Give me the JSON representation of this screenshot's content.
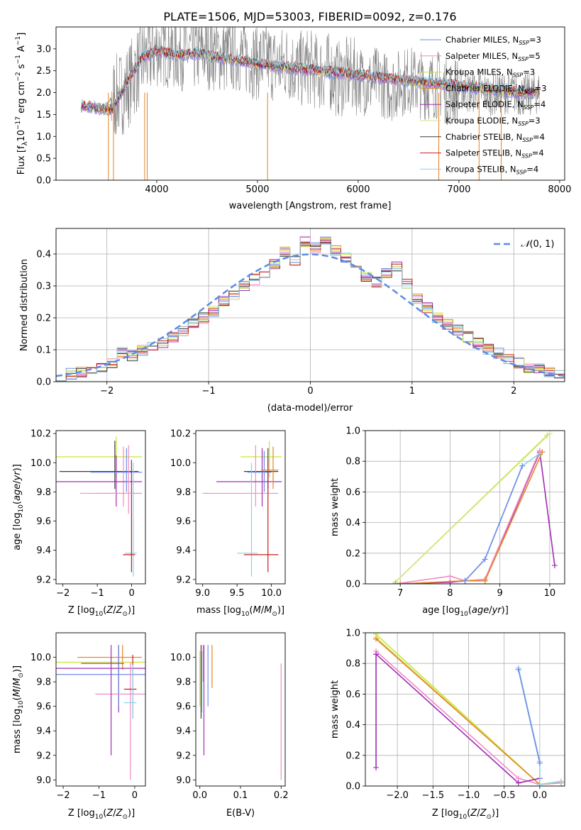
{
  "figure": {
    "title": "PLATE=1506, MJD=53003, FIBERID=0092, z=0.176"
  },
  "colors": {
    "observed": "#808080",
    "models": [
      "#6f8ce6",
      "#f08cc8",
      "#c8e632",
      "#e6821e",
      "#a02cb4",
      "#d2e682",
      "#3c3c3c",
      "#c81e1e",
      "#8cd2e6"
    ],
    "normal_curve": "#5a8ce6",
    "grid": "#b0b0b0"
  },
  "chart_data": [
    {
      "id": "spectrum",
      "type": "line",
      "title": "PLATE=1506, MJD=53003, FIBERID=0092, z=0.176",
      "xlabel": "wavelength [Angstrom, rest frame]",
      "ylabel": "Flux [f_λ 10^-17 erg cm^-2 s^-1 A^-1]",
      "xlim": [
        3000,
        8050
      ],
      "ylim": [
        0,
        3.5
      ],
      "xticks": [
        4000,
        5000,
        6000,
        7000,
        8000
      ],
      "yticks": [
        0.0,
        0.5,
        1.0,
        1.5,
        2.0,
        2.5,
        3.0
      ],
      "grid": false,
      "legend_position": "top-right",
      "observed": {
        "name": "observed spectrum",
        "x": [
          3250,
          3300,
          3350,
          3400,
          3450,
          3500,
          3550,
          3600,
          3650,
          3700,
          3750,
          3800,
          3850,
          3900,
          3950,
          4000,
          4100,
          4200,
          4300,
          4400,
          4500,
          4600,
          4700,
          4800,
          4900,
          5000,
          5100,
          5200,
          5300,
          5400,
          5500,
          5600,
          5700,
          5800,
          5900,
          6000,
          6100,
          6200,
          6300,
          6400,
          6500,
          6600,
          6700,
          6800,
          6900,
          7000,
          7100,
          7200,
          7300,
          7400,
          7500,
          7600,
          7700,
          7800
        ],
        "y": [
          1.65,
          1.7,
          1.6,
          1.7,
          1.55,
          1.7,
          1.85,
          1.9,
          2.0,
          2.1,
          2.3,
          2.5,
          2.7,
          2.8,
          2.9,
          3.0,
          3.0,
          2.9,
          2.95,
          2.9,
          2.95,
          2.9,
          2.85,
          2.9,
          2.8,
          2.7,
          2.75,
          2.6,
          2.7,
          2.5,
          2.6,
          2.45,
          2.5,
          2.3,
          2.4,
          2.35,
          2.2,
          2.3,
          2.1,
          2.2,
          2.3,
          2.2,
          2.15,
          2.2,
          2.0,
          2.1,
          2.0,
          2.05,
          1.95,
          2.0,
          2.0,
          1.95,
          1.95,
          2.0
        ]
      },
      "models": {
        "x": [
          3250,
          3400,
          3550,
          3700,
          3850,
          4000,
          4200,
          4400,
          4600,
          4800,
          5000,
          5200,
          5400,
          5600,
          5800,
          6000,
          6200,
          6400,
          6600,
          6800,
          7000,
          7200,
          7400,
          7600,
          7800
        ],
        "y": [
          1.7,
          1.65,
          1.6,
          2.2,
          2.8,
          2.95,
          2.85,
          2.9,
          2.8,
          2.75,
          2.65,
          2.6,
          2.55,
          2.5,
          2.45,
          2.4,
          2.35,
          2.3,
          2.25,
          2.2,
          2.15,
          2.1,
          2.05,
          2.0,
          2.0
        ]
      },
      "series_names": [
        "Chabrier MILES, N_SSP=3",
        "Salpeter MILES, N_SSP=5",
        "Kroupa MILES, N_SSP=3",
        "Chabrier ELODIE, N_SSP=3",
        "Salpeter ELODIE, N_SSP=4",
        "Kroupa ELODIE, N_SSP=3",
        "Chabrier STELIB, N_SSP=4",
        "Salpeter STELIB, N_SSP=4",
        "Kroupa STELIB, N_SSP=4"
      ],
      "legend": [
        {
          "model": "Chabrier MILES, N",
          "sub": "SSP",
          "tail": "=3"
        },
        {
          "model": "Salpeter MILES, N",
          "sub": "SSP",
          "tail": "=5"
        },
        {
          "model": "Kroupa MILES, N",
          "sub": "SSP",
          "tail": "=3"
        },
        {
          "model": "Chabrier ELODIE, N",
          "sub": "SSP",
          "tail": "=3"
        },
        {
          "model": "Salpeter ELODIE, N",
          "sub": "SSP",
          "tail": "=4"
        },
        {
          "model": "Kroupa ELODIE, N",
          "sub": "SSP",
          "tail": "=3"
        },
        {
          "model": "Chabrier STELIB, N",
          "sub": "SSP",
          "tail": "=4"
        },
        {
          "model": "Salpeter STELIB, N",
          "sub": "SSP",
          "tail": "=4"
        },
        {
          "model": "Kroupa STELIB, N",
          "sub": "SSP",
          "tail": "=4"
        }
      ]
    },
    {
      "id": "residuals",
      "type": "line",
      "xlabel": "(data-model)/error",
      "ylabel": "Normed distribution",
      "xlim": [
        -2.5,
        2.5
      ],
      "ylim": [
        0,
        0.48
      ],
      "xticks": [
        -2,
        -1,
        0,
        1,
        2
      ],
      "yticks": [
        0.0,
        0.1,
        0.2,
        0.3,
        0.4
      ],
      "grid": true,
      "legend_position": "top-right",
      "normal_label": "N(0,1)",
      "bin_edges": [
        -2.5,
        -2.4,
        -2.3,
        -2.2,
        -2.1,
        -2.0,
        -1.9,
        -1.8,
        -1.7,
        -1.6,
        -1.5,
        -1.4,
        -1.3,
        -1.2,
        -1.1,
        -1.0,
        -0.9,
        -0.8,
        -0.7,
        -0.6,
        -0.5,
        -0.4,
        -0.3,
        -0.2,
        -0.1,
        0.0,
        0.1,
        0.2,
        0.3,
        0.4,
        0.5,
        0.6,
        0.7,
        0.8,
        0.9,
        1.0,
        1.1,
        1.2,
        1.3,
        1.4,
        1.5,
        1.6,
        1.7,
        1.8,
        1.9,
        2.0,
        2.1,
        2.2,
        2.3,
        2.4,
        2.5
      ],
      "hist_values": [
        0.02,
        0.025,
        0.03,
        0.035,
        0.04,
        0.06,
        0.09,
        0.08,
        0.1,
        0.11,
        0.12,
        0.14,
        0.16,
        0.18,
        0.2,
        0.22,
        0.25,
        0.27,
        0.3,
        0.32,
        0.34,
        0.37,
        0.41,
        0.38,
        0.44,
        0.42,
        0.44,
        0.41,
        0.39,
        0.37,
        0.33,
        0.31,
        0.34,
        0.36,
        0.31,
        0.26,
        0.23,
        0.2,
        0.18,
        0.16,
        0.14,
        0.12,
        0.1,
        0.09,
        0.07,
        0.06,
        0.045,
        0.04,
        0.03,
        0.025
      ]
    },
    {
      "id": "age_vs_Z",
      "type": "scatter",
      "xlabel": "Z [log10(Z/Z⊙)]",
      "ylabel": "age [log10(age/yr)]",
      "xlim": [
        -2.2,
        0.4
      ],
      "ylim": [
        9.17,
        10.22
      ],
      "xticks": [
        -2,
        -1,
        0
      ],
      "yticks": [
        9.2,
        9.4,
        9.6,
        9.8,
        10.0,
        10.2
      ],
      "grid": false,
      "points": [
        {
          "x": -2.2,
          "x2": 0.3,
          "y": 10.04,
          "y1": 9.9,
          "y2": 10.18,
          "c": 2
        },
        {
          "x": -2.1,
          "x2": 0.2,
          "y": 9.94,
          "y1": 9.82,
          "y2": 10.15,
          "c": 6
        },
        {
          "x": -1.5,
          "x2": 0.3,
          "y": 9.79,
          "y1": 9.7,
          "y2": 10.11,
          "c": 1
        },
        {
          "x": -2.2,
          "x2": 0.3,
          "y": 9.87,
          "y1": 9.7,
          "y2": 10.05,
          "c": 4
        },
        {
          "x": -1.2,
          "x2": 0.3,
          "y": 9.935,
          "y1": 9.8,
          "y2": 10.1,
          "c": 0
        },
        {
          "x": -0.2,
          "x2": 0.15,
          "y": 9.38,
          "y1": 9.22,
          "y2": 10.0,
          "c": 8
        },
        {
          "x": -0.25,
          "x2": 0.1,
          "y": 9.37,
          "y1": 9.25,
          "y2": 10.02,
          "c": 7
        },
        {
          "x": -1.0,
          "x2": 0.3,
          "y": 9.79,
          "y1": 9.65,
          "y2": 10.12,
          "c": 1
        }
      ]
    },
    {
      "id": "age_vs_mass",
      "type": "scatter",
      "xlabel": "mass [log10(M/M⊙)]",
      "ylabel": "",
      "xlim": [
        8.9,
        10.2
      ],
      "ylim": [
        9.17,
        10.22
      ],
      "xticks": [
        9.0,
        9.5,
        10.0
      ],
      "yticks": [
        9.2,
        9.4,
        9.6,
        9.8,
        10.0,
        10.2
      ],
      "grid": false,
      "points": [
        {
          "x": 9.55,
          "x2": 10.15,
          "y": 10.04,
          "y1": 9.9,
          "y2": 10.15,
          "c": 2
        },
        {
          "x": 9.6,
          "x2": 10.1,
          "y": 9.94,
          "y1": 9.82,
          "y2": 10.1,
          "c": 6
        },
        {
          "x": 9.0,
          "x2": 10.1,
          "y": 9.79,
          "y1": 9.7,
          "y2": 10.12,
          "c": 1
        },
        {
          "x": 9.2,
          "x2": 10.15,
          "y": 9.87,
          "y1": 9.7,
          "y2": 10.1,
          "c": 4
        },
        {
          "x": 9.65,
          "x2": 10.0,
          "y": 9.935,
          "y1": 9.8,
          "y2": 10.08,
          "c": 0
        },
        {
          "x": 9.5,
          "x2": 9.8,
          "y": 9.38,
          "y1": 9.22,
          "y2": 10.0,
          "c": 8
        },
        {
          "x": 9.6,
          "x2": 10.1,
          "y": 9.37,
          "y1": 9.25,
          "y2": 10.02,
          "c": 7
        },
        {
          "x": 9.85,
          "x2": 10.1,
          "y": 9.95,
          "y1": 9.82,
          "y2": 10.11,
          "c": 3
        }
      ]
    },
    {
      "id": "mass_weight_vs_age",
      "type": "line",
      "xlabel": "age [log10(age/yr)]",
      "ylabel": "mass weight",
      "xlim": [
        6.3,
        10.3
      ],
      "ylim": [
        0,
        1.0
      ],
      "xticks": [
        7,
        8,
        9,
        10
      ],
      "yticks": [
        0.0,
        0.2,
        0.4,
        0.6,
        0.8,
        1.0
      ],
      "grid": true,
      "series": [
        {
          "x": [
            6.9,
            9.95
          ],
          "y": [
            0.01,
            0.97
          ],
          "c": 2
        },
        {
          "x": [
            6.9,
            10.0
          ],
          "y": [
            0.01,
            0.98
          ],
          "c": 5
        },
        {
          "x": [
            6.9,
            8.0,
            8.3,
            8.7,
            9.8,
            10.1
          ],
          "y": [
            0.0,
            0.01,
            0.02,
            0.02,
            0.86,
            0.12
          ],
          "c": 4
        },
        {
          "x": [
            6.9,
            8.0,
            8.3,
            8.7,
            9.8
          ],
          "y": [
            0.0,
            0.05,
            0.02,
            0.03,
            0.87
          ],
          "c": 1
        },
        {
          "x": [
            7.0,
            8.3,
            8.7,
            9.85
          ],
          "y": [
            0.0,
            0.02,
            0.02,
            0.86
          ],
          "c": 3
        },
        {
          "x": [
            8.3,
            8.7,
            9.45,
            9.8
          ],
          "y": [
            0.02,
            0.16,
            0.77,
            0.85
          ],
          "c": 8
        },
        {
          "x": [
            8.3,
            8.7,
            9.45
          ],
          "y": [
            0.02,
            0.16,
            0.77
          ],
          "c": 0
        }
      ]
    },
    {
      "id": "mass_vs_Z",
      "type": "scatter",
      "xlabel": "Z [log10(Z/Z⊙)]",
      "ylabel": "mass [log10(M/M⊙)]",
      "xlim": [
        -2.2,
        0.3
      ],
      "ylim": [
        8.95,
        10.2
      ],
      "xticks": [
        -2,
        -1,
        0
      ],
      "yticks": [
        9.0,
        9.2,
        9.4,
        9.6,
        9.8,
        10.0
      ],
      "grid": false,
      "points": [
        {
          "x": -1.6,
          "x2": 0.2,
          "y": 10.0,
          "y1": 9.9,
          "y2": 10.1,
          "c": 3
        },
        {
          "x": -2.2,
          "x2": 0.3,
          "y": 9.96,
          "y1": 9.6,
          "y2": 10.1,
          "c": 2
        },
        {
          "x": -2.2,
          "x2": 0.3,
          "y": 9.91,
          "y1": 9.55,
          "y2": 10.1,
          "c": 4
        },
        {
          "x": -2.2,
          "x2": 0.3,
          "y": 9.86,
          "y1": 9.6,
          "y2": 10.1,
          "c": 0
        },
        {
          "x": -1.1,
          "x2": 0.3,
          "y": 9.7,
          "y1": 9.0,
          "y2": 9.96,
          "c": 1
        },
        {
          "x": -0.3,
          "x2": 0.05,
          "y": 9.74,
          "y1": 9.5,
          "y2": 10.02,
          "c": 7
        },
        {
          "x": -0.3,
          "x2": 0.05,
          "y": 9.63,
          "y1": 9.5,
          "y2": 9.94,
          "c": 8
        },
        {
          "x": -1.5,
          "x2": -0.3,
          "y": 9.95,
          "y1": 9.2,
          "y2": 10.1,
          "c": 4
        }
      ]
    },
    {
      "id": "mass_vs_EBV",
      "type": "scatter",
      "xlabel": "E(B-V)",
      "ylabel": "",
      "xlim": [
        -0.01,
        0.21
      ],
      "ylim": [
        8.95,
        10.2
      ],
      "xticks": [
        0.0,
        0.1,
        0.2
      ],
      "yticks": [
        9.0,
        9.2,
        9.4,
        9.6,
        9.8,
        10.0
      ],
      "grid": false,
      "points": [
        {
          "x": 0.0,
          "y1": 9.6,
          "y2": 10.05,
          "c": 2
        },
        {
          "x": 0.003,
          "y1": 9.5,
          "y2": 10.1,
          "c": 6
        },
        {
          "x": 0.005,
          "y1": 9.55,
          "y2": 10.05,
          "c": 8
        },
        {
          "x": 0.008,
          "y1": 9.8,
          "y2": 10.1,
          "c": 1
        },
        {
          "x": 0.01,
          "y1": 9.2,
          "y2": 10.1,
          "c": 4
        },
        {
          "x": 0.02,
          "y1": 9.6,
          "y2": 10.1,
          "c": 0
        },
        {
          "x": 0.03,
          "y1": 9.75,
          "y2": 10.1,
          "c": 3
        },
        {
          "x": 0.2,
          "y1": 9.0,
          "y2": 9.95,
          "c": 1
        }
      ]
    },
    {
      "id": "mass_weight_vs_Z",
      "type": "line",
      "xlabel": "Z [log10(Z/Z⊙)]",
      "ylabel": "mass weight",
      "xlim": [
        -2.45,
        0.35
      ],
      "ylim": [
        0,
        1.0
      ],
      "xticks": [
        -2.0,
        -1.5,
        -1.0,
        -0.5,
        0.0
      ],
      "yticks": [
        0.0,
        0.2,
        0.4,
        0.6,
        0.8,
        1.0
      ],
      "grid": true,
      "series": [
        {
          "x": [
            -2.3,
            0.0,
            0.3
          ],
          "y": [
            0.99,
            0.01,
            0.02
          ],
          "c": 2
        },
        {
          "x": [
            -2.3,
            0.0
          ],
          "y": [
            0.97,
            0.01
          ],
          "c": 5
        },
        {
          "x": [
            -2.3,
            0.0,
            0.3
          ],
          "y": [
            0.96,
            0.01,
            0.03
          ],
          "c": 3
        },
        {
          "x": [
            -2.3,
            -0.3,
            0.0,
            0.3
          ],
          "y": [
            0.88,
            0.05,
            0.01,
            0.02
          ],
          "c": 1
        },
        {
          "x": [
            -2.3,
            -2.3,
            -0.3,
            0.0
          ],
          "y": [
            0.12,
            0.86,
            0.02,
            0.05
          ],
          "c": 4
        },
        {
          "x": [
            -0.3,
            0.0,
            0.0,
            0.3
          ],
          "y": [
            0.77,
            0.16,
            0.01,
            0.03
          ],
          "c": 8
        },
        {
          "x": [
            -0.3,
            0.0
          ],
          "y": [
            0.76,
            0.15
          ],
          "c": 0
        }
      ]
    }
  ]
}
